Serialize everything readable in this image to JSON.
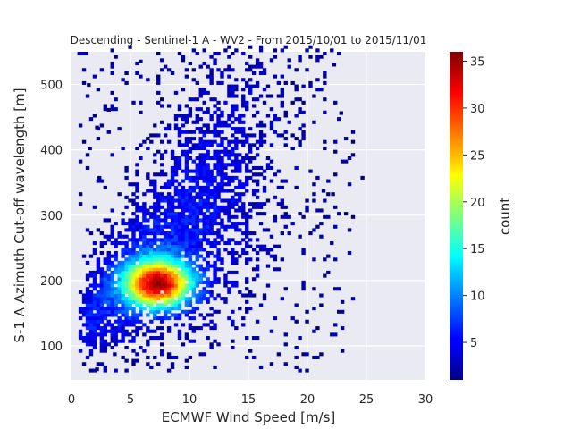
{
  "chart_data": {
    "type": "heatmap",
    "title": "Descending - Sentinel-1 A - WV2 - From 2015/10/01 to 2015/11/01",
    "xlabel": "ECMWF Wind Speed [m/s]",
    "ylabel": "S-1 A Azimuth Cut-off wavelength [m]",
    "xlim": [
      0,
      30
    ],
    "ylim": [
      48,
      550
    ],
    "xticks": [
      0,
      5,
      10,
      15,
      20,
      25,
      30
    ],
    "yticks": [
      100,
      200,
      300,
      400,
      500
    ],
    "grid": true,
    "bin_width_x": 0.3,
    "bin_height_y": 5,
    "colorbar": {
      "label": "count",
      "min": 1,
      "max": 36,
      "ticks": [
        5,
        10,
        15,
        20,
        25,
        30,
        35
      ],
      "colormap": "jet"
    },
    "density_peak": {
      "x": 7.2,
      "y": 193,
      "count": 36
    },
    "outliers": [
      {
        "x": 0.5,
        "y": 545,
        "count": 3
      },
      {
        "x": 0.8,
        "y": 545,
        "count": 3
      },
      {
        "x": 1.1,
        "y": 545,
        "count": 2
      },
      {
        "x": 5.7,
        "y": 533,
        "count": 1
      },
      {
        "x": 20.1,
        "y": 540,
        "count": 1
      },
      {
        "x": 22.1,
        "y": 528,
        "count": 1
      },
      {
        "x": 22.7,
        "y": 454,
        "count": 1
      },
      {
        "x": 24.5,
        "y": 355,
        "count": 1
      },
      {
        "x": 1.3,
        "y": 497,
        "count": 1
      },
      {
        "x": 3.0,
        "y": 459,
        "count": 1
      },
      {
        "x": 2.0,
        "y": 432,
        "count": 1
      },
      {
        "x": 1.4,
        "y": 400,
        "count": 1
      },
      {
        "x": 2.2,
        "y": 355,
        "count": 1
      },
      {
        "x": 2.0,
        "y": 62,
        "count": 1
      },
      {
        "x": 3.5,
        "y": 85,
        "count": 1
      },
      {
        "x": 21.2,
        "y": 335,
        "count": 1
      },
      {
        "x": 22.0,
        "y": 330,
        "count": 1
      }
    ]
  },
  "colors": {
    "plot_background": "#eaeaf2",
    "grid": "#ffffff",
    "text": "#262626"
  }
}
